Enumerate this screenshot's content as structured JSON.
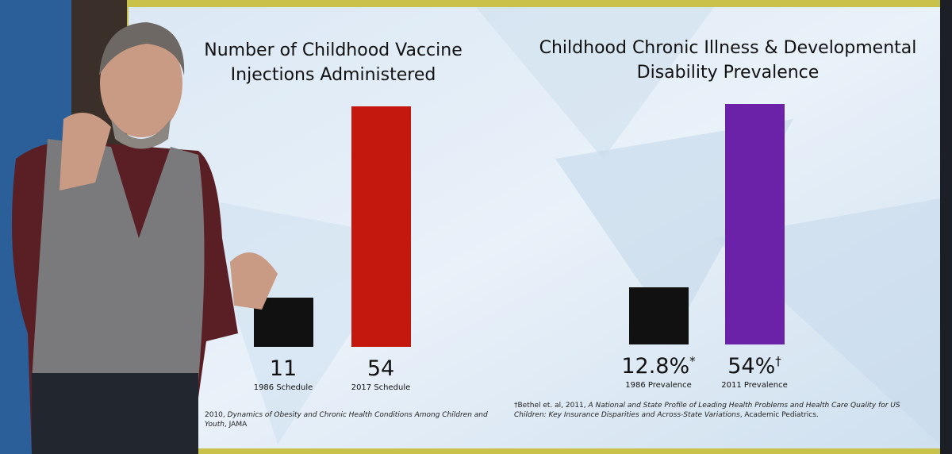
{
  "chart_data": [
    {
      "type": "bar",
      "title": "Number of Childhood Vaccine Injections Administered",
      "categories": [
        "1986 Schedule",
        "2017 Schedule"
      ],
      "values": [
        11,
        54
      ],
      "colors": [
        "#111111",
        "#c4170d"
      ],
      "footnote": [
        "2010, ",
        "Dynamics of Obesity and Chronic Health Conditions Among Children and Youth",
        ", JAMA"
      ]
    },
    {
      "type": "bar",
      "title": "Childhood Chronic Illness & Developmental Disability Prevalence",
      "categories": [
        "1986 Prevalence",
        "2011 Prevalence"
      ],
      "values": [
        12.8,
        54
      ],
      "value_labels": [
        "12.8%",
        "54%"
      ],
      "value_label_marks": [
        "*",
        "†"
      ],
      "colors": [
        "#111111",
        "#6b22a8"
      ],
      "footnote": [
        "†Bethel et. al, 2011, ",
        "A National and State Profile of Leading Health Problems and Health Care Quality for US Children: Key Insurance Disparities and Across-State Variations",
        ", Academic Pediatrics."
      ]
    }
  ]
}
